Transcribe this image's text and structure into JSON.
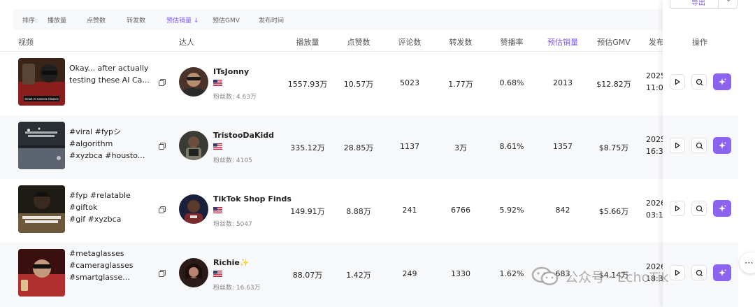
{
  "sort_bar": {
    "label": "排序:",
    "options": [
      "播放量",
      "点赞数",
      "转发数",
      "预估销量 ↓",
      "预估GMV",
      "发布时间"
    ],
    "active_index": 3
  },
  "export_button": {
    "label": "导出"
  },
  "columns": {
    "video": "视频",
    "influencer": "达人",
    "plays": "播放量",
    "likes": "点赞数",
    "comments": "评论数",
    "shares": "转发数",
    "like_rate": "赞播率",
    "est_sales": "预估销量",
    "est_gmv": "预估GMV",
    "publish": "发布",
    "actions": "操作"
  },
  "rows": [
    {
      "title_lines": [
        "Okay... after actually",
        "testing these AI Ca..."
      ],
      "influencer": "ITsJonny",
      "sparkle": "",
      "fans": "粉丝数: 4.63万",
      "plays": "1557.93万",
      "likes": "10.57万",
      "comments": "5023",
      "shares": "1.77万",
      "like_rate": "0.68%",
      "est_sales": "2013",
      "est_gmv": "$12.82万",
      "date_lines": [
        "2025-",
        "11:0"
      ],
      "thumb_colors": [
        "#3a2418",
        "#8c1d1d"
      ],
      "thumb_caption": "Smart AI Camera Glasses",
      "avatar_colors": [
        "#4a3328",
        "#9a7a5e"
      ]
    },
    {
      "title_lines": [
        "#viral #fypシ #algorithm",
        "#xyzbca #housto..."
      ],
      "influencer": "TristooDaKidd",
      "sparkle": "",
      "fans": "粉丝数: 4105",
      "plays": "335.12万",
      "likes": "28.85万",
      "comments": "1137",
      "shares": "3万",
      "like_rate": "8.61%",
      "est_sales": "1357",
      "est_gmv": "$8.75万",
      "date_lines": [
        "2025-",
        "16:3"
      ],
      "thumb_colors": [
        "#2a2f36",
        "#5b6470"
      ],
      "thumb_caption": "",
      "avatar_colors": [
        "#3b3b36",
        "#7d7a6a"
      ]
    },
    {
      "title_lines": [
        "#fyp #relatable #giftok",
        "#gif #xyzbca"
      ],
      "influencer": "TikTok Shop Finds",
      "sparkle": "",
      "fans": "粉丝数: 5047",
      "plays": "149.91万",
      "likes": "8.88万",
      "comments": "241",
      "shares": "6766",
      "like_rate": "5.92%",
      "est_sales": "842",
      "est_gmv": "$5.66万",
      "date_lines": [
        "2026-",
        "03:1"
      ],
      "thumb_colors": [
        "#1e1a14",
        "#6e5a3a"
      ],
      "thumb_caption": "",
      "avatar_colors": [
        "#1a1f3a",
        "#7a2a2a"
      ]
    },
    {
      "title_lines": [
        "#metaglasses",
        "#cameraglasses",
        "#smartglasse..."
      ],
      "influencer": "Richie",
      "sparkle": "✨",
      "fans": "粉丝数: 16.63万",
      "plays": "88.07万",
      "likes": "1.42万",
      "comments": "249",
      "shares": "1330",
      "like_rate": "1.62%",
      "est_sales": "683",
      "est_gmv": "$4.14万",
      "date_lines": [
        "2026-",
        "18:3"
      ],
      "thumb_colors": [
        "#3a0f10",
        "#b03030"
      ],
      "thumb_caption": "",
      "avatar_colors": [
        "#2a1a18",
        "#a07060"
      ]
    }
  ],
  "watermark": "公众号 · EchoTik",
  "icons": {
    "play": "play-icon",
    "search": "search-icon",
    "ai": "ai-sparkle-icon",
    "copy": "copy-icon",
    "flag": "us-flag-icon",
    "more": "more-icon"
  },
  "colors": {
    "accent": "#7c5ce6",
    "ai_button": "#8b63ee",
    "row_alt": "#f7f8fa"
  }
}
